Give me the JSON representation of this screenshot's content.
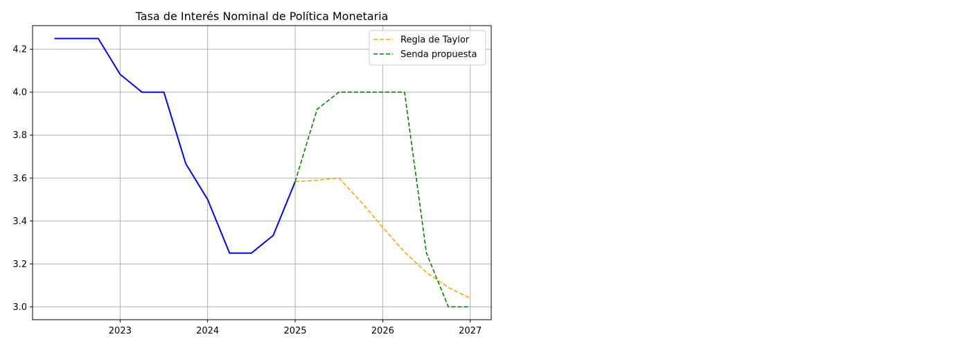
{
  "chart_data": {
    "type": "line",
    "title": "Tasa de Interés Nominal de Política Monetaria",
    "xlabel": "",
    "ylabel": "",
    "xlim": [
      2022.0,
      2027.24
    ],
    "ylim": [
      2.94,
      4.31
    ],
    "x_ticks": [
      2023,
      2024,
      2025,
      2026,
      2027
    ],
    "x_tick_labels": [
      "2023",
      "2024",
      "2025",
      "2026",
      "2027"
    ],
    "y_ticks": [
      3.0,
      3.2,
      3.4,
      3.6,
      3.8,
      4.0,
      4.2
    ],
    "y_tick_labels": [
      "3.0",
      "3.2",
      "3.4",
      "3.6",
      "3.8",
      "4.0",
      "4.2"
    ],
    "grid": true,
    "legend_position": "top-right",
    "series": [
      {
        "name": "",
        "color": "#0000ff",
        "style": "solid",
        "show_in_legend": false,
        "points": [
          [
            2022.25,
            4.25
          ],
          [
            2022.5,
            4.25
          ],
          [
            2022.75,
            4.25
          ],
          [
            2023.0,
            4.083
          ],
          [
            2023.25,
            4.0
          ],
          [
            2023.5,
            4.0
          ],
          [
            2023.75,
            3.667
          ],
          [
            2024.0,
            3.5
          ],
          [
            2024.25,
            3.25
          ],
          [
            2024.5,
            3.25
          ],
          [
            2024.75,
            3.333
          ],
          [
            2025.0,
            3.583
          ]
        ]
      },
      {
        "name": "Regla de Taylor",
        "color": "#ffa500",
        "style": "dashed",
        "show_in_legend": true,
        "points": [
          [
            2025.0,
            3.583
          ],
          [
            2025.25,
            3.59
          ],
          [
            2025.5,
            3.6
          ],
          [
            2025.75,
            3.49
          ],
          [
            2026.0,
            3.37
          ],
          [
            2026.25,
            3.255
          ],
          [
            2026.5,
            3.16
          ],
          [
            2026.75,
            3.09
          ],
          [
            2027.0,
            3.04
          ]
        ]
      },
      {
        "name": "Senda propuesta",
        "color": "#008000",
        "style": "dashed",
        "show_in_legend": true,
        "points": [
          [
            2025.0,
            3.583
          ],
          [
            2025.25,
            3.92
          ],
          [
            2025.5,
            4.0
          ],
          [
            2025.75,
            4.0
          ],
          [
            2026.0,
            4.0
          ],
          [
            2026.25,
            4.0
          ],
          [
            2026.5,
            3.25
          ],
          [
            2026.75,
            3.0
          ],
          [
            2027.0,
            3.0
          ]
        ]
      }
    ]
  }
}
